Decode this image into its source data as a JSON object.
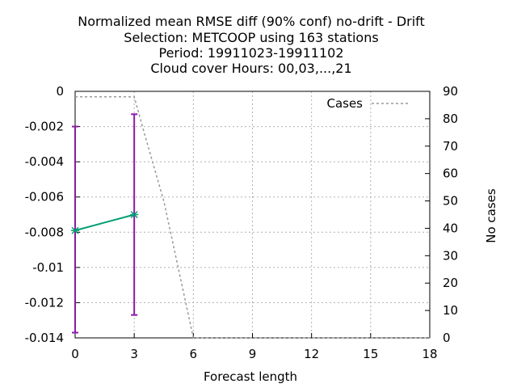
{
  "chart_data": {
    "type": "line",
    "title_lines": [
      "Normalized mean RMSE diff (90% conf) no-drift - Drift",
      "Selection: METCOOP using   163 stations",
      "Period: 19911023-19911102",
      "Cloud cover   Hours:  00,03,...,21"
    ],
    "xlabel": "Forecast length",
    "ylabel_right": "No cases",
    "xlim": [
      0,
      18
    ],
    "ylim": [
      -0.014,
      0
    ],
    "y2lim": [
      0,
      90
    ],
    "x_ticks": [
      0,
      3,
      6,
      9,
      12,
      15,
      18
    ],
    "y_ticks": [
      0,
      -0.002,
      -0.004,
      -0.006,
      -0.008,
      -0.01,
      -0.012,
      -0.014
    ],
    "y_tick_labels": [
      "0",
      "-0.002",
      "-0.004",
      "-0.006",
      "-0.008",
      "-0.01",
      "-0.012",
      "-0.014"
    ],
    "y2_ticks": [
      0,
      10,
      20,
      30,
      40,
      50,
      60,
      70,
      80,
      90
    ],
    "grid": true,
    "legend_position": "top-right",
    "series": [
      {
        "kind": "mean_diff",
        "color": "#009e73",
        "x": [
          0,
          3
        ],
        "y": [
          -0.0079,
          -0.007
        ]
      },
      {
        "kind": "errorbars",
        "color": "#8c1aa6",
        "x": [
          0,
          3
        ],
        "low": [
          -0.0137,
          -0.0127
        ],
        "high": [
          -0.002,
          -0.0013
        ]
      },
      {
        "kind": "cases",
        "name": "Cases",
        "color": "#999999",
        "axis": "right",
        "x": [
          0,
          3,
          3.5,
          4.5,
          6,
          9,
          12,
          15,
          18
        ],
        "y": [
          88,
          88,
          75,
          50,
          0,
          0,
          0,
          0,
          0
        ]
      }
    ]
  }
}
